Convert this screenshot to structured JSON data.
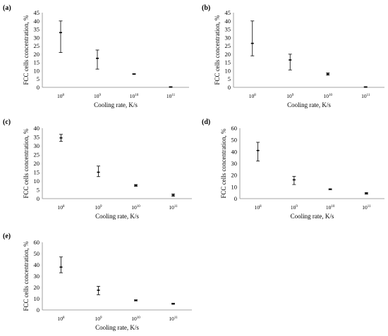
{
  "chart_data": [
    {
      "type": "scatter",
      "panel_label": "(a)",
      "ylabel": "FCC cells concentration, %",
      "xlabel": "Cooling rate, K/s",
      "categories": [
        {
          "base": "10",
          "exp": "8"
        },
        {
          "base": "10",
          "exp": "9"
        },
        {
          "base": "10",
          "exp": "10"
        },
        {
          "base": "10",
          "exp": "11"
        }
      ],
      "values": [
        33,
        17.5,
        8,
        0.2
      ],
      "err_low": [
        21,
        11,
        7.8,
        0
      ],
      "err_high": [
        40,
        22.5,
        8.2,
        0.4
      ],
      "ylim": [
        0,
        45
      ],
      "yticks": [
        "0",
        "5",
        "10",
        "15",
        "20",
        "25",
        "30",
        "35",
        "40",
        "45"
      ],
      "grid": false
    },
    {
      "type": "scatter",
      "panel_label": "(b)",
      "ylabel": "FCC cells concentration, %",
      "xlabel": "Cooling rate, K/s",
      "categories": [
        {
          "base": "10",
          "exp": "8"
        },
        {
          "base": "10",
          "exp": "9"
        },
        {
          "base": "10",
          "exp": "10"
        },
        {
          "base": "10",
          "exp": "11"
        }
      ],
      "values": [
        26.5,
        16.5,
        8,
        0.2
      ],
      "err_low": [
        19,
        10.5,
        7.3,
        0
      ],
      "err_high": [
        40,
        20,
        8.7,
        0.4
      ],
      "ylim": [
        0,
        45
      ],
      "yticks": [
        "0",
        "5",
        "10",
        "15",
        "20",
        "25",
        "30",
        "35",
        "40",
        "45"
      ],
      "grid": false
    },
    {
      "type": "scatter",
      "panel_label": "(c)",
      "ylabel": "FCC cells concentration, %",
      "xlabel": "Cooling rate, K/s",
      "categories": [
        {
          "base": "10",
          "exp": "8"
        },
        {
          "base": "10",
          "exp": "9"
        },
        {
          "base": "10",
          "exp": "10"
        },
        {
          "base": "10",
          "exp": "11"
        }
      ],
      "values": [
        34.5,
        15,
        7.5,
        2
      ],
      "err_low": [
        32.5,
        12.5,
        7,
        1.3
      ],
      "err_high": [
        36.5,
        18.5,
        8,
        2.7
      ],
      "ylim": [
        0,
        40
      ],
      "yticks": [
        "0",
        "5",
        "10",
        "15",
        "20",
        "25",
        "30",
        "35",
        "40"
      ],
      "grid": false
    },
    {
      "type": "scatter",
      "panel_label": "(d)",
      "ylabel": "FCC cells concentration, %",
      "xlabel": "Cooling rate, K/s",
      "categories": [
        {
          "base": "10",
          "exp": "8"
        },
        {
          "base": "10",
          "exp": "9"
        },
        {
          "base": "10",
          "exp": "10"
        },
        {
          "base": "10",
          "exp": "11"
        }
      ],
      "values": [
        41,
        16,
        8,
        4.5
      ],
      "err_low": [
        32,
        12,
        7.6,
        3.8
      ],
      "err_high": [
        48,
        19,
        8.4,
        5.2
      ],
      "ylim": [
        0,
        60
      ],
      "yticks": [
        "0",
        "10",
        "20",
        "30",
        "40",
        "50",
        "60"
      ],
      "grid": false
    },
    {
      "type": "scatter",
      "panel_label": "(e)",
      "ylabel": "FCC cells concentration, %",
      "xlabel": "Cooling rate, K/s",
      "categories": [
        {
          "base": "10",
          "exp": "8"
        },
        {
          "base": "10",
          "exp": "9"
        },
        {
          "base": "10",
          "exp": "10"
        },
        {
          "base": "10",
          "exp": "11"
        }
      ],
      "values": [
        38,
        17.5,
        8.5,
        5.5
      ],
      "err_low": [
        33,
        13.5,
        8,
        5
      ],
      "err_high": [
        47,
        21,
        9,
        6
      ],
      "ylim": [
        0,
        60
      ],
      "yticks": [
        "0",
        "10",
        "20",
        "30",
        "40",
        "50",
        "60"
      ],
      "grid": false
    }
  ]
}
